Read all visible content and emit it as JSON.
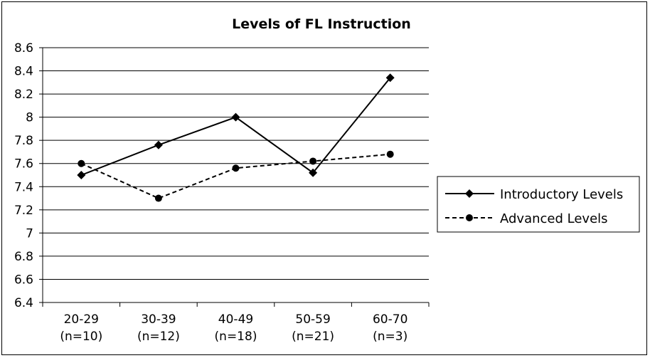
{
  "chart_data": {
    "type": "line",
    "title": "Levels of FL Instruction",
    "xlabel": "",
    "ylabel": "",
    "categories": [
      [
        "20-29",
        "(n=10)"
      ],
      [
        "30-39",
        "(n=12)"
      ],
      [
        "40-49",
        "(n=18)"
      ],
      [
        "50-59",
        "(n=21)"
      ],
      [
        "60-70",
        "(n=3)"
      ]
    ],
    "ylim": [
      6.4,
      8.6
    ],
    "yticks": [
      6.4,
      6.6,
      6.8,
      7,
      7.2,
      7.4,
      7.6,
      7.8,
      8,
      8.2,
      8.4,
      8.6
    ],
    "ytick_labels": [
      "6.4",
      "6.6",
      "6.8",
      "7",
      "7.2",
      "7.4",
      "7.6",
      "7.8",
      "8",
      "8.2",
      "8.4",
      "8.6"
    ],
    "grid": true,
    "legend_position": "right",
    "series": [
      {
        "name": "Introductory Levels",
        "values": [
          7.5,
          7.76,
          8.0,
          7.52,
          8.34
        ],
        "marker": "diamond",
        "line_style": "solid",
        "color": "#000000"
      },
      {
        "name": "Advanced Levels",
        "values": [
          7.6,
          7.3,
          7.56,
          7.62,
          7.68
        ],
        "marker": "circle",
        "line_style": "dashed",
        "color": "#000000"
      }
    ]
  }
}
